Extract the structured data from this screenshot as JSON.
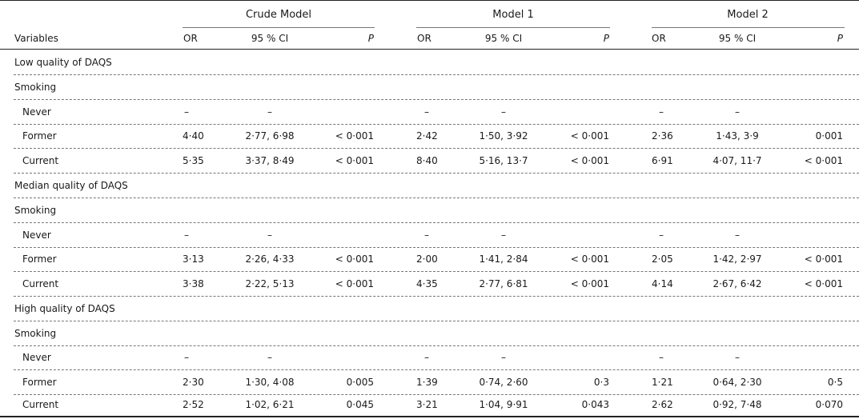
{
  "header": {
    "groups": [
      "Crude Model",
      "Model 1",
      "Model 2"
    ],
    "variables_label": "Variables",
    "sub_columns": [
      "OR",
      "95 % CI",
      "P"
    ]
  },
  "rows": [
    {
      "type": "section",
      "label": "Low quality of DAQS"
    },
    {
      "type": "subsection",
      "label": "Smoking"
    },
    {
      "type": "data",
      "label": "Never",
      "cells": [
        "–",
        "–",
        "",
        "–",
        "–",
        "",
        "–",
        "–",
        ""
      ]
    },
    {
      "type": "data",
      "label": "Former",
      "cells": [
        "4·40",
        "2·77, 6·98",
        "< 0·001",
        "2·42",
        "1·50, 3·92",
        "< 0·001",
        "2·36",
        "1·43, 3·9",
        "0·001"
      ]
    },
    {
      "type": "data",
      "label": "Current",
      "cells": [
        "5·35",
        "3·37, 8·49",
        "< 0·001",
        "8·40",
        "5·16, 13·7",
        "< 0·001",
        "6·91",
        "4·07, 11·7",
        "< 0·001"
      ]
    },
    {
      "type": "section",
      "label": "Median quality of DAQS"
    },
    {
      "type": "subsection",
      "label": "Smoking"
    },
    {
      "type": "data",
      "label": "Never",
      "cells": [
        "–",
        "–",
        "",
        "–",
        "–",
        "",
        "–",
        "–",
        ""
      ]
    },
    {
      "type": "data",
      "label": "Former",
      "cells": [
        "3·13",
        "2·26, 4·33",
        "< 0·001",
        "2·00",
        "1·41, 2·84",
        "< 0·001",
        "2·05",
        "1·42, 2·97",
        "< 0·001"
      ]
    },
    {
      "type": "data",
      "label": "Current",
      "cells": [
        "3·38",
        "2·22, 5·13",
        "< 0·001",
        "4·35",
        "2·77, 6·81",
        "< 0·001",
        "4·14",
        "2·67, 6·42",
        "< 0·001"
      ]
    },
    {
      "type": "section",
      "label": "High quality of DAQS"
    },
    {
      "type": "subsection",
      "label": "Smoking"
    },
    {
      "type": "data",
      "label": "Never",
      "cells": [
        "–",
        "–",
        "",
        "–",
        "–",
        "",
        "–",
        "–",
        ""
      ]
    },
    {
      "type": "data",
      "label": "Former",
      "cells": [
        "2·30",
        "1·30, 4·08",
        "0·005",
        "1·39",
        "0·74, 2·60",
        "0·3",
        "1·21",
        "0·64, 2·30",
        "0·5"
      ]
    },
    {
      "type": "data",
      "label": "Current",
      "cells": [
        "2·52",
        "1·02, 6·21",
        "0·045",
        "3·21",
        "1·04, 9·91",
        "0·043",
        "2·62",
        "0·92, 7·48",
        "0·070"
      ]
    }
  ]
}
